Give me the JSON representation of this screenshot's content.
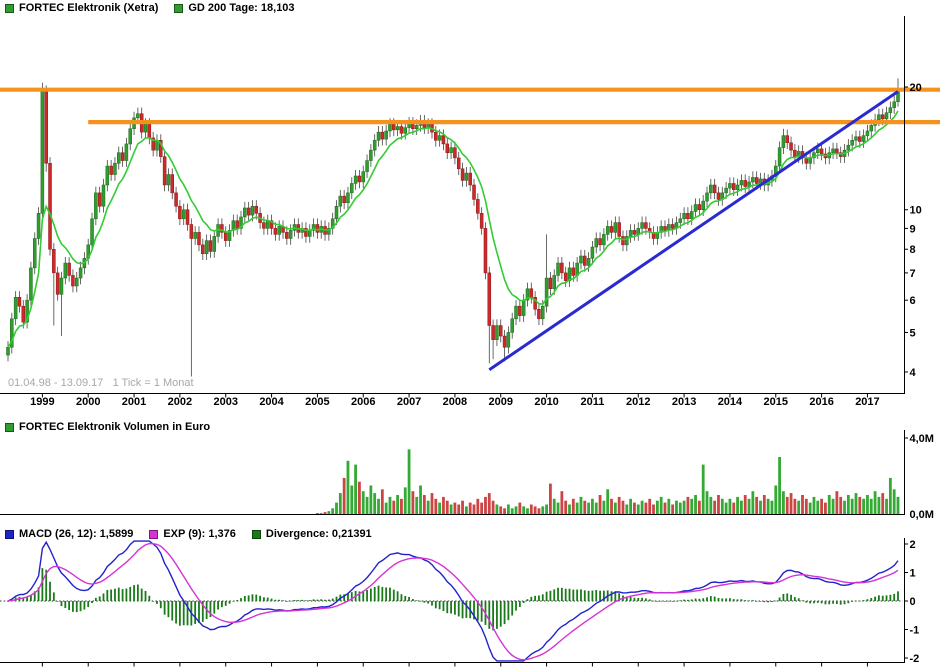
{
  "header": {
    "series_label": "FORTEC Elektronik (Xetra)",
    "ma_label": "GD 200 Tage: 18,103"
  },
  "volume_panel": {
    "label": "FORTEC Elektronik Volumen in Euro",
    "axis_labels": [
      "4,0M",
      "0,0M"
    ]
  },
  "macd_panel": {
    "macd_label": "MACD (26, 12): 1,5899",
    "exp_label": "EXP (9): 1,376",
    "divergence_label": "Divergence: 0,21391",
    "axis_ticks": [
      "2",
      "1",
      "0",
      "-1",
      "-2"
    ]
  },
  "footnote": "01.04.98 - 13.09.17   1 Tick = 1 Monat",
  "colors": {
    "legend_green": "#2f9e2f",
    "candle_up": "#2f9e2f",
    "candle_up_border": "#1c6a1c",
    "candle_down": "#cc2a2a",
    "candle_down_border": "#8a1717",
    "wick": "#444444",
    "ma": "#33cc33",
    "resistance": "#f5921e",
    "trend": "#2a2ad0",
    "macd_line": "#2222cc",
    "signal_line": "#d633d6",
    "histogram": "#1a7a1a",
    "volume_up": "#33aa33",
    "volume_down": "#cc4444",
    "axis_text": "#000000",
    "note_text": "#a8a8a8"
  },
  "chart_data": {
    "type": "candlestick",
    "title": "FORTEC Elektronik (Xetra)",
    "x_start": "1998-04",
    "x_end": "2017-09",
    "tick_interval": "1 Monat",
    "scale": "log",
    "price_axis_ticks": [
      20,
      10,
      9,
      8,
      7,
      6,
      5,
      4
    ],
    "year_labels": [
      "1999",
      "2000",
      "2001",
      "2002",
      "2003",
      "2004",
      "2005",
      "2006",
      "2007",
      "2008",
      "2009",
      "2010",
      "2011",
      "2012",
      "2013",
      "2014",
      "2015",
      "2016",
      "2017"
    ],
    "first_open": 4.4,
    "closes": [
      4.6,
      5.4,
      6.1,
      5.8,
      5.3,
      6.0,
      7.2,
      8.5,
      9.8,
      19.5,
      13.0,
      8.0,
      7.0,
      6.2,
      6.8,
      7.4,
      6.9,
      6.5,
      6.8,
      7.2,
      7.6,
      8.2,
      9.5,
      11.0,
      10.2,
      11.5,
      12.8,
      12.2,
      13.0,
      13.8,
      13.2,
      14.5,
      15.8,
      16.8,
      17.2,
      15.5,
      16.2,
      15.0,
      14.0,
      14.8,
      13.5,
      11.5,
      12.2,
      11.0,
      10.2,
      9.5,
      10.0,
      9.2,
      8.5,
      8.8,
      8.2,
      7.8,
      8.4,
      7.9,
      8.6,
      9.2,
      8.8,
      8.4,
      8.9,
      9.4,
      9.0,
      9.6,
      10.1,
      9.7,
      10.2,
      9.8,
      9.3,
      9.0,
      9.4,
      9.0,
      8.7,
      9.1,
      8.8,
      8.5,
      8.9,
      9.2,
      8.8,
      9.0,
      8.6,
      8.9,
      9.2,
      8.8,
      9.1,
      8.7,
      9.0,
      9.5,
      10.2,
      10.8,
      10.4,
      11.0,
      11.6,
      12.1,
      11.7,
      12.4,
      13.2,
      14.0,
      14.8,
      15.5,
      14.9,
      15.6,
      16.2,
      15.7,
      16.0,
      15.4,
      15.9,
      16.3,
      15.8,
      16.1,
      16.5,
      15.9,
      16.2,
      15.5,
      14.8,
      15.2,
      14.5,
      13.8,
      14.2,
      13.4,
      12.6,
      11.8,
      12.3,
      11.5,
      10.6,
      9.8,
      9.0,
      7.0,
      5.2,
      4.8,
      5.2,
      4.9,
      4.6,
      5.0,
      5.4,
      5.8,
      5.5,
      6.0,
      6.4,
      6.1,
      5.7,
      5.4,
      5.8,
      6.8,
      6.4,
      6.9,
      7.4,
      7.0,
      6.7,
      7.2,
      6.9,
      7.4,
      7.7,
      7.3,
      7.6,
      8.1,
      8.5,
      8.2,
      8.7,
      9.1,
      8.8,
      9.3,
      8.6,
      8.2,
      8.6,
      8.9,
      8.7,
      9.0,
      9.3,
      9.0,
      8.8,
      8.5,
      8.8,
      9.1,
      8.9,
      9.2,
      9.0,
      9.3,
      9.5,
      9.8,
      9.5,
      9.9,
      10.3,
      10.0,
      10.5,
      11.0,
      11.5,
      11.0,
      10.6,
      11.0,
      11.3,
      11.6,
      11.2,
      11.5,
      11.8,
      11.4,
      11.7,
      12.0,
      11.6,
      11.9,
      11.5,
      11.8,
      12.1,
      12.8,
      14.2,
      15.2,
      14.6,
      14.0,
      13.5,
      13.9,
      13.4,
      13.0,
      13.4,
      13.8,
      14.1,
      13.7,
      13.4,
      13.8,
      14.1,
      13.8,
      13.5,
      14.0,
      14.4,
      14.8,
      15.1,
      14.7,
      15.2,
      15.6,
      16.1,
      16.6,
      17.1,
      16.7,
      17.3,
      17.8,
      18.4,
      19.8
    ],
    "wick_overrides": {
      "9": {
        "high": 20.5,
        "low": 9.5
      },
      "10": {
        "low": 12.4
      },
      "12": {
        "low": 5.2
      },
      "14": {
        "low": 4.9
      },
      "34": {
        "high": 17.8
      },
      "48": {
        "low": 3.9
      },
      "126": {
        "low": 4.2
      },
      "127": {
        "low": 4.3
      },
      "130": {
        "low": 4.25
      },
      "141": {
        "high": 8.7
      },
      "203": {
        "high": 15.8
      },
      "233": {
        "high": 21.0,
        "low": 17.9
      }
    },
    "ma200_span_ticks": 9,
    "ma200_current": "18,103",
    "volume_axis_max_meur": 4.0,
    "volumes_meur": [
      0,
      0,
      0,
      0,
      0,
      0,
      0,
      0,
      0,
      0,
      0,
      0,
      0,
      0,
      0,
      0,
      0,
      0,
      0,
      0,
      0,
      0,
      0,
      0,
      0,
      0,
      0,
      0,
      0,
      0,
      0,
      0,
      0,
      0,
      0,
      0,
      0,
      0,
      0,
      0,
      0,
      0,
      0,
      0,
      0,
      0,
      0,
      0,
      0,
      0,
      0,
      0,
      0,
      0,
      0,
      0,
      0,
      0,
      0,
      0,
      0,
      0,
      0,
      0,
      0,
      0,
      0,
      0,
      0,
      0,
      0,
      0,
      0,
      0,
      0,
      0,
      0,
      0,
      0,
      0,
      0,
      0.05,
      0.05,
      0.1,
      0.15,
      0.3,
      0.6,
      1.1,
      1.9,
      2.8,
      1.5,
      2.6,
      1.7,
      1.2,
      0.9,
      1.5,
      1.1,
      0.8,
      1.3,
      0.6,
      0.9,
      0.7,
      1.0,
      0.8,
      1.4,
      3.4,
      1.2,
      0.9,
      1.5,
      1.0,
      0.7,
      1.1,
      0.8,
      0.6,
      0.9,
      0.7,
      0.5,
      0.6,
      0.5,
      0.7,
      0.4,
      0.6,
      0.5,
      0.8,
      0.6,
      0.9,
      1.1,
      0.7,
      0.5,
      0.4,
      0.3,
      0.5,
      0.3,
      0.4,
      0.6,
      0.4,
      0.3,
      0.5,
      0.4,
      0.3,
      0.4,
      0.5,
      1.6,
      0.8,
      0.6,
      1.2,
      0.7,
      0.5,
      0.8,
      0.6,
      0.9,
      0.7,
      0.6,
      0.8,
      0.6,
      1.0,
      0.7,
      1.3,
      0.8,
      0.6,
      0.9,
      0.7,
      0.5,
      0.8,
      0.6,
      0.5,
      0.7,
      0.6,
      0.8,
      0.5,
      0.7,
      0.9,
      0.6,
      0.8,
      0.5,
      0.7,
      0.6,
      0.7,
      0.9,
      0.8,
      1.0,
      0.7,
      2.6,
      1.2,
      0.9,
      0.7,
      1.0,
      0.8,
      0.6,
      0.8,
      0.6,
      0.9,
      0.7,
      1.0,
      0.8,
      1.2,
      0.9,
      0.7,
      1.0,
      0.8,
      0.7,
      1.5,
      3.0,
      1.2,
      0.9,
      1.1,
      0.8,
      0.7,
      1.0,
      0.8,
      0.6,
      0.9,
      0.7,
      0.8,
      0.6,
      1.0,
      0.8,
      1.2,
      0.9,
      0.7,
      1.0,
      0.8,
      1.1,
      0.9,
      0.8,
      1.0,
      0.8,
      1.2,
      0.9,
      1.1,
      0.8,
      1.9,
      1.3,
      0.9
    ],
    "overlays": {
      "resistance_lines": [
        {
          "value": 19.7,
          "from_index": 0
        },
        {
          "value": 16.4,
          "from_index": 21
        }
      ],
      "trendline": {
        "from_index": 126,
        "from_value": 4.05,
        "to_index": 233,
        "to_value": 19.5
      }
    },
    "macd": {
      "slow": 26,
      "fast": 12,
      "signal": 9,
      "current": 1.5899,
      "exp_current": 1.376,
      "divergence_current": 0.21391,
      "axis_range": [
        -2,
        2
      ]
    }
  }
}
